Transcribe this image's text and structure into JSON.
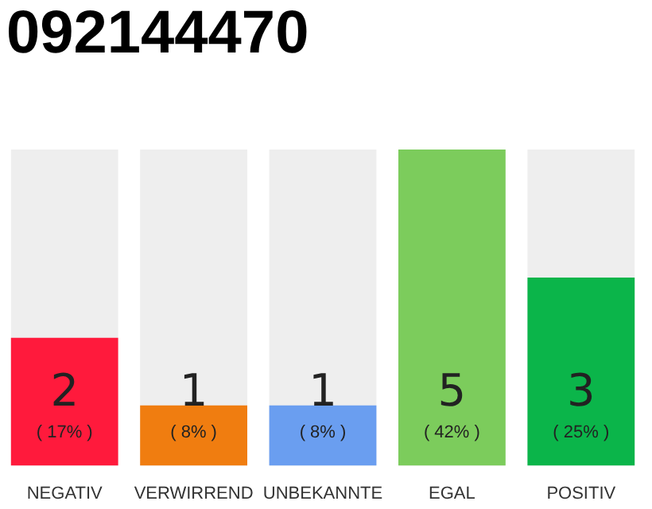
{
  "chart_data": {
    "type": "bar",
    "title": "092144470",
    "categories": [
      "NEGATIV",
      "VERWIRREND",
      "UNBEKANNTE",
      "EGAL",
      "POSITIV"
    ],
    "values": [
      17,
      8,
      8,
      42,
      25
    ],
    "colors": [
      "#ff1a3c",
      "#f07d10",
      "#6a9ef0",
      "#7ccc5c",
      "#0bb54a"
    ],
    "value_labels": [
      "( 17% )",
      "( 8% )",
      "( 8% )",
      "( 42% )",
      "( 25% )"
    ],
    "annotations": [
      "2",
      "1",
      "1",
      "5",
      "3"
    ],
    "tick_labels": "x",
    "legend": false
  }
}
